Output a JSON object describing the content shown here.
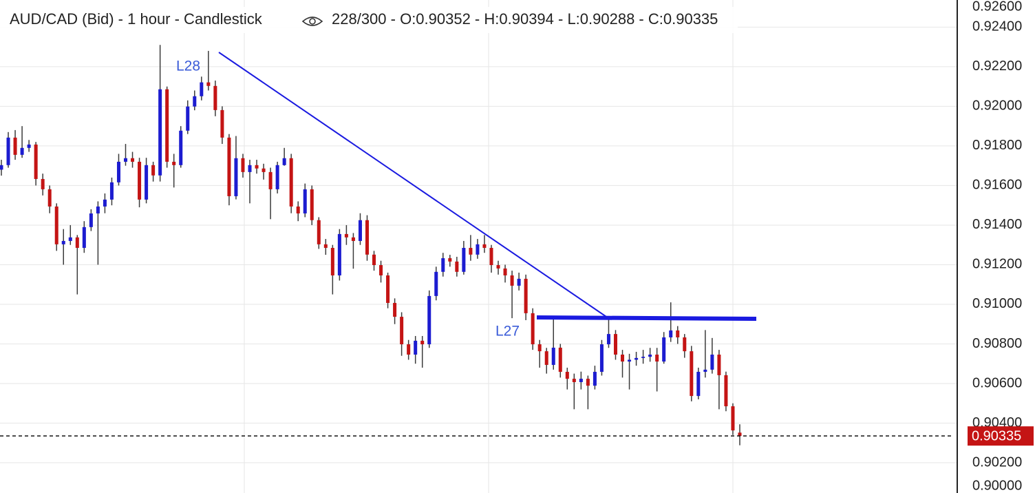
{
  "chart_data": {
    "type": "candlestick",
    "title": "AUD/CAD (Bid) - 1 hour - Candlestick",
    "info": "228/300 - O:0.90352 - H:0.90394 - L:0.90288 - C:0.90335",
    "annotations": [
      "L28",
      "L27"
    ],
    "up_color": "#1c1cd0",
    "down_color": "#c41414",
    "wick_color": "#3a3a3a",
    "grid": true,
    "ylim": [
      0.90047,
      0.92537
    ],
    "yticks": [
      {
        "value": 0.926,
        "label": "0.92600"
      },
      {
        "value": 0.924,
        "label": "0.92400"
      },
      {
        "value": 0.922,
        "label": "0.92200"
      },
      {
        "value": 0.92,
        "label": "0.92000"
      },
      {
        "value": 0.918,
        "label": "0.91800"
      },
      {
        "value": 0.916,
        "label": "0.91600"
      },
      {
        "value": 0.914,
        "label": "0.91400"
      },
      {
        "value": 0.912,
        "label": "0.91200"
      },
      {
        "value": 0.91,
        "label": "0.91000"
      },
      {
        "value": 0.908,
        "label": "0.90800"
      },
      {
        "value": 0.906,
        "label": "0.90600"
      },
      {
        "value": 0.904,
        "label": "0.90400"
      },
      {
        "value": 0.902,
        "label": "0.90200"
      },
      {
        "value": 0.9,
        "label": "0.90000"
      }
    ],
    "last_price": {
      "value": 0.90335,
      "label": "0.90335"
    },
    "open": [
      0.9168,
      0.91703,
      0.91842,
      0.91755,
      0.9179,
      0.91807,
      0.91633,
      0.91581,
      0.91494,
      0.91303,
      0.9132,
      0.91338,
      0.91285,
      0.9139,
      0.91459,
      0.91494,
      0.91529,
      0.91616,
      0.9172,
      0.91738,
      0.9172,
      0.91529,
      0.91703,
      0.91651,
      0.92086,
      0.9172,
      0.91703,
      0.91877,
      0.91999,
      0.92051,
      0.92121,
      0.92103,
      0.91981,
      0.91842,
      0.91546,
      0.91738,
      0.91668,
      0.91703,
      0.91686,
      0.91668,
      0.91581,
      0.91703,
      0.91738,
      0.91494,
      0.91459,
      0.91581,
      0.91425,
      0.91303,
      0.91285,
      0.91146,
      0.91355,
      0.91338,
      0.9132,
      0.91425,
      0.91251,
      0.91198,
      0.91146,
      0.91007,
      0.90937,
      0.90798,
      0.90746,
      0.90816,
      0.90798,
      0.91042,
      0.91164,
      0.91233,
      0.91216,
      0.91164,
      0.91285,
      0.91251,
      0.91303,
      0.91285,
      0.91198,
      0.91181,
      0.91146,
      0.91094,
      0.91129,
      0.90955,
      0.90798,
      0.90763,
      0.90694,
      0.90781,
      0.90659,
      0.90624,
      0.90607,
      0.90624,
      0.90589,
      0.90659,
      0.90798,
      0.9085,
      0.90746,
      0.90711,
      0.9072,
      0.90729,
      0.90735,
      0.90746,
      0.90711,
      0.90833,
      0.90868,
      0.90833,
      0.90763,
      0.90537,
      0.90659,
      0.9067,
      0.90746,
      0.90642,
      0.90485,
      0.90352
    ],
    "high": [
      0.9173,
      0.9187,
      0.9188,
      0.919,
      0.9183,
      0.9182,
      0.9166,
      0.916,
      0.9151,
      0.9138,
      0.914,
      0.9135,
      0.9142,
      0.9148,
      0.9152,
      0.9156,
      0.9164,
      0.9176,
      0.9181,
      0.9177,
      0.9174,
      0.9174,
      0.9172,
      0.9231,
      0.921,
      0.9176,
      0.919,
      0.9203,
      0.9208,
      0.9215,
      0.9228,
      0.9213,
      0.92,
      0.9186,
      0.9185,
      0.9176,
      0.9173,
      0.9173,
      0.9171,
      0.9169,
      0.9172,
      0.9179,
      0.9176,
      0.9152,
      0.9161,
      0.916,
      0.9144,
      0.9133,
      0.913,
      0.9138,
      0.914,
      0.9136,
      0.9146,
      0.9145,
      0.9127,
      0.9122,
      0.9116,
      0.9103,
      0.9096,
      0.9082,
      0.9084,
      0.9084,
      0.9107,
      0.9119,
      0.9126,
      0.9125,
      0.9124,
      0.9132,
      0.9135,
      0.9133,
      0.9135,
      0.913,
      0.9122,
      0.912,
      0.9117,
      0.9116,
      0.9115,
      0.9098,
      0.9082,
      0.9078,
      0.9093,
      0.908,
      0.9068,
      0.9065,
      0.9066,
      0.9064,
      0.9069,
      0.9082,
      0.9094,
      0.9087,
      0.9077,
      0.9075,
      0.9076,
      0.9077,
      0.9078,
      0.9078,
      0.9086,
      0.9101,
      0.9089,
      0.9085,
      0.9079,
      0.9068,
      0.9087,
      0.9083,
      0.9077,
      0.9066,
      0.905,
      0.90394
    ],
    "low": [
      0.9165,
      0.9169,
      0.9173,
      0.9174,
      0.9177,
      0.916,
      0.9155,
      0.9146,
      0.9127,
      0.912,
      0.913,
      0.9105,
      0.9126,
      0.9137,
      0.912,
      0.9146,
      0.915,
      0.916,
      0.917,
      0.9169,
      0.9149,
      0.9151,
      0.9162,
      0.9162,
      0.9169,
      0.9159,
      0.9169,
      0.9186,
      0.9198,
      0.9203,
      0.9208,
      0.9195,
      0.9181,
      0.915,
      0.9153,
      0.9164,
      0.9151,
      0.9166,
      0.9163,
      0.9143,
      0.9156,
      0.917,
      0.9146,
      0.9142,
      0.9144,
      0.914,
      0.9128,
      0.9125,
      0.9105,
      0.9112,
      0.913,
      0.9118,
      0.913,
      0.9122,
      0.9117,
      0.9111,
      0.9098,
      0.909,
      0.9074,
      0.9072,
      0.907,
      0.9068,
      0.9078,
      0.9102,
      0.9114,
      0.9119,
      0.9114,
      0.9115,
      0.9122,
      0.9123,
      0.9126,
      0.9116,
      0.9115,
      0.9111,
      0.9093,
      0.9107,
      0.9092,
      0.9077,
      0.9068,
      0.9065,
      0.9067,
      0.9063,
      0.9057,
      0.9047,
      0.9057,
      0.9047,
      0.9057,
      0.9064,
      0.9078,
      0.9072,
      0.9063,
      0.9057,
      0.9069,
      0.907,
      0.9071,
      0.9056,
      0.907,
      0.9081,
      0.908,
      0.9073,
      0.9051,
      0.9052,
      0.9063,
      0.9065,
      0.9047,
      0.9046,
      0.9034,
      0.90288
    ],
    "close": [
      0.91703,
      0.91842,
      0.91755,
      0.9179,
      0.91807,
      0.91633,
      0.91581,
      0.91494,
      0.91303,
      0.9132,
      0.91338,
      0.91285,
      0.9139,
      0.91459,
      0.91494,
      0.91529,
      0.91616,
      0.9172,
      0.91738,
      0.9172,
      0.91529,
      0.91703,
      0.91651,
      0.92086,
      0.9172,
      0.91703,
      0.91877,
      0.91999,
      0.92051,
      0.92121,
      0.92103,
      0.91981,
      0.91842,
      0.91546,
      0.91738,
      0.91668,
      0.91703,
      0.91686,
      0.91668,
      0.91581,
      0.91703,
      0.91738,
      0.91494,
      0.91459,
      0.91581,
      0.91425,
      0.91303,
      0.91285,
      0.91146,
      0.91355,
      0.91338,
      0.9132,
      0.91425,
      0.91251,
      0.91198,
      0.91146,
      0.91007,
      0.90937,
      0.90798,
      0.90746,
      0.90816,
      0.90798,
      0.91042,
      0.91164,
      0.91233,
      0.91216,
      0.91164,
      0.91285,
      0.91251,
      0.91303,
      0.91285,
      0.91198,
      0.91181,
      0.91146,
      0.91094,
      0.91129,
      0.90955,
      0.90798,
      0.90763,
      0.90694,
      0.90781,
      0.90659,
      0.90624,
      0.90607,
      0.90624,
      0.90589,
      0.90659,
      0.90798,
      0.9085,
      0.90746,
      0.90711,
      0.9072,
      0.90729,
      0.90735,
      0.90746,
      0.90711,
      0.90833,
      0.90868,
      0.90833,
      0.90763,
      0.90537,
      0.90659,
      0.9067,
      0.90746,
      0.90642,
      0.90485,
      0.90363,
      0.90335
    ]
  }
}
